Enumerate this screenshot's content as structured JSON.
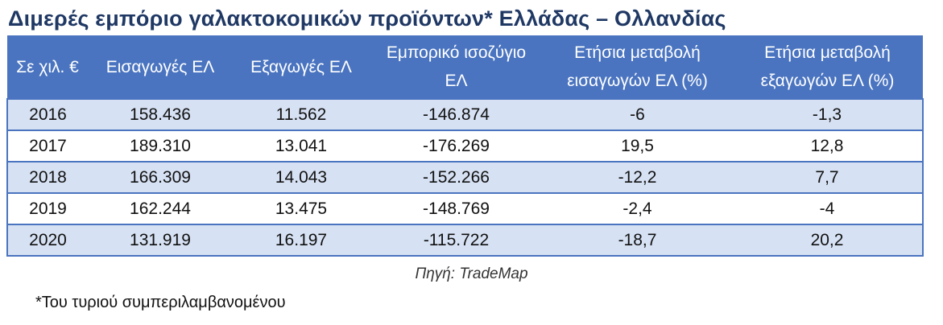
{
  "title": "Διμερές εμπόριο γαλακτοκομικών προϊόντων* Ελλάδας – Ολλανδίας",
  "table": {
    "headers": [
      "Σε χιλ. €",
      "Εισαγωγές ΕΛ",
      "Εξαγωγές ΕΛ",
      "Εμπορικό ισοζύγιο ΕΛ",
      "Ετήσια μεταβολή εισαγωγών ΕΛ (%)",
      "Ετήσια μεταβολή εξαγωγών ΕΛ (%)"
    ],
    "rows": [
      [
        "2016",
        "158.436",
        "11.562",
        "-146.874",
        "-6",
        "-1,3"
      ],
      [
        "2017",
        "189.310",
        "13.041",
        "-176.269",
        "19,5",
        "12,8"
      ],
      [
        "2018",
        "166.309",
        "14.043",
        "-152.266",
        "-12,2",
        "7,7"
      ],
      [
        "2019",
        "162.244",
        "13.475",
        "-148.769",
        "-2,4",
        "-4"
      ],
      [
        "2020",
        "131.919",
        "16.197",
        "-115.722",
        "-18,7",
        "20,2"
      ]
    ]
  },
  "source": "Πηγή: TradeMap",
  "footnote": "*Του τυριού συμπεριλαμβανομένου",
  "colors": {
    "header_bg": "#4a74c0",
    "row_alt_bg": "#d6e1f3",
    "title": "#1f3864"
  }
}
